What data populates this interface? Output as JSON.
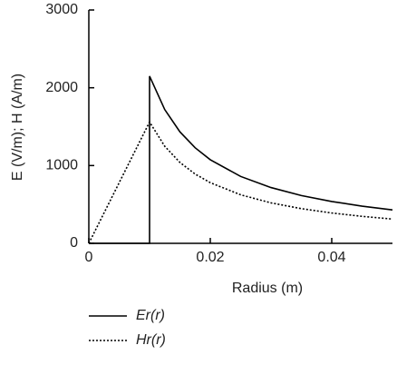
{
  "chart_data": {
    "type": "line",
    "x_label": "Radius (m)",
    "y_label": "E (V/m); H (A/m)",
    "x": [
      0,
      0.01,
      0.01,
      0.0125,
      0.015,
      0.0175,
      0.02,
      0.025,
      0.03,
      0.035,
      0.04,
      0.045,
      0.05
    ],
    "series": [
      {
        "name": "Er(r)",
        "color": "#000000",
        "dash": "solid",
        "values": [
          0,
          0,
          2150,
          1720,
          1433,
          1229,
          1075,
          860,
          717,
          614,
          538,
          478,
          430
        ]
      },
      {
        "name": "Hr(r)",
        "color": "#000000",
        "dash": "dotted",
        "values": [
          0,
          1560,
          1560,
          1248,
          1040,
          891,
          780,
          624,
          520,
          446,
          390,
          347,
          312
        ]
      }
    ],
    "xlim": [
      0,
      0.05
    ],
    "xticks": [
      0,
      0.02,
      0.04
    ],
    "ylim": [
      0,
      3000
    ],
    "yticks": [
      0,
      1000,
      2000,
      3000
    ],
    "grid": false,
    "legend": "bottom"
  }
}
